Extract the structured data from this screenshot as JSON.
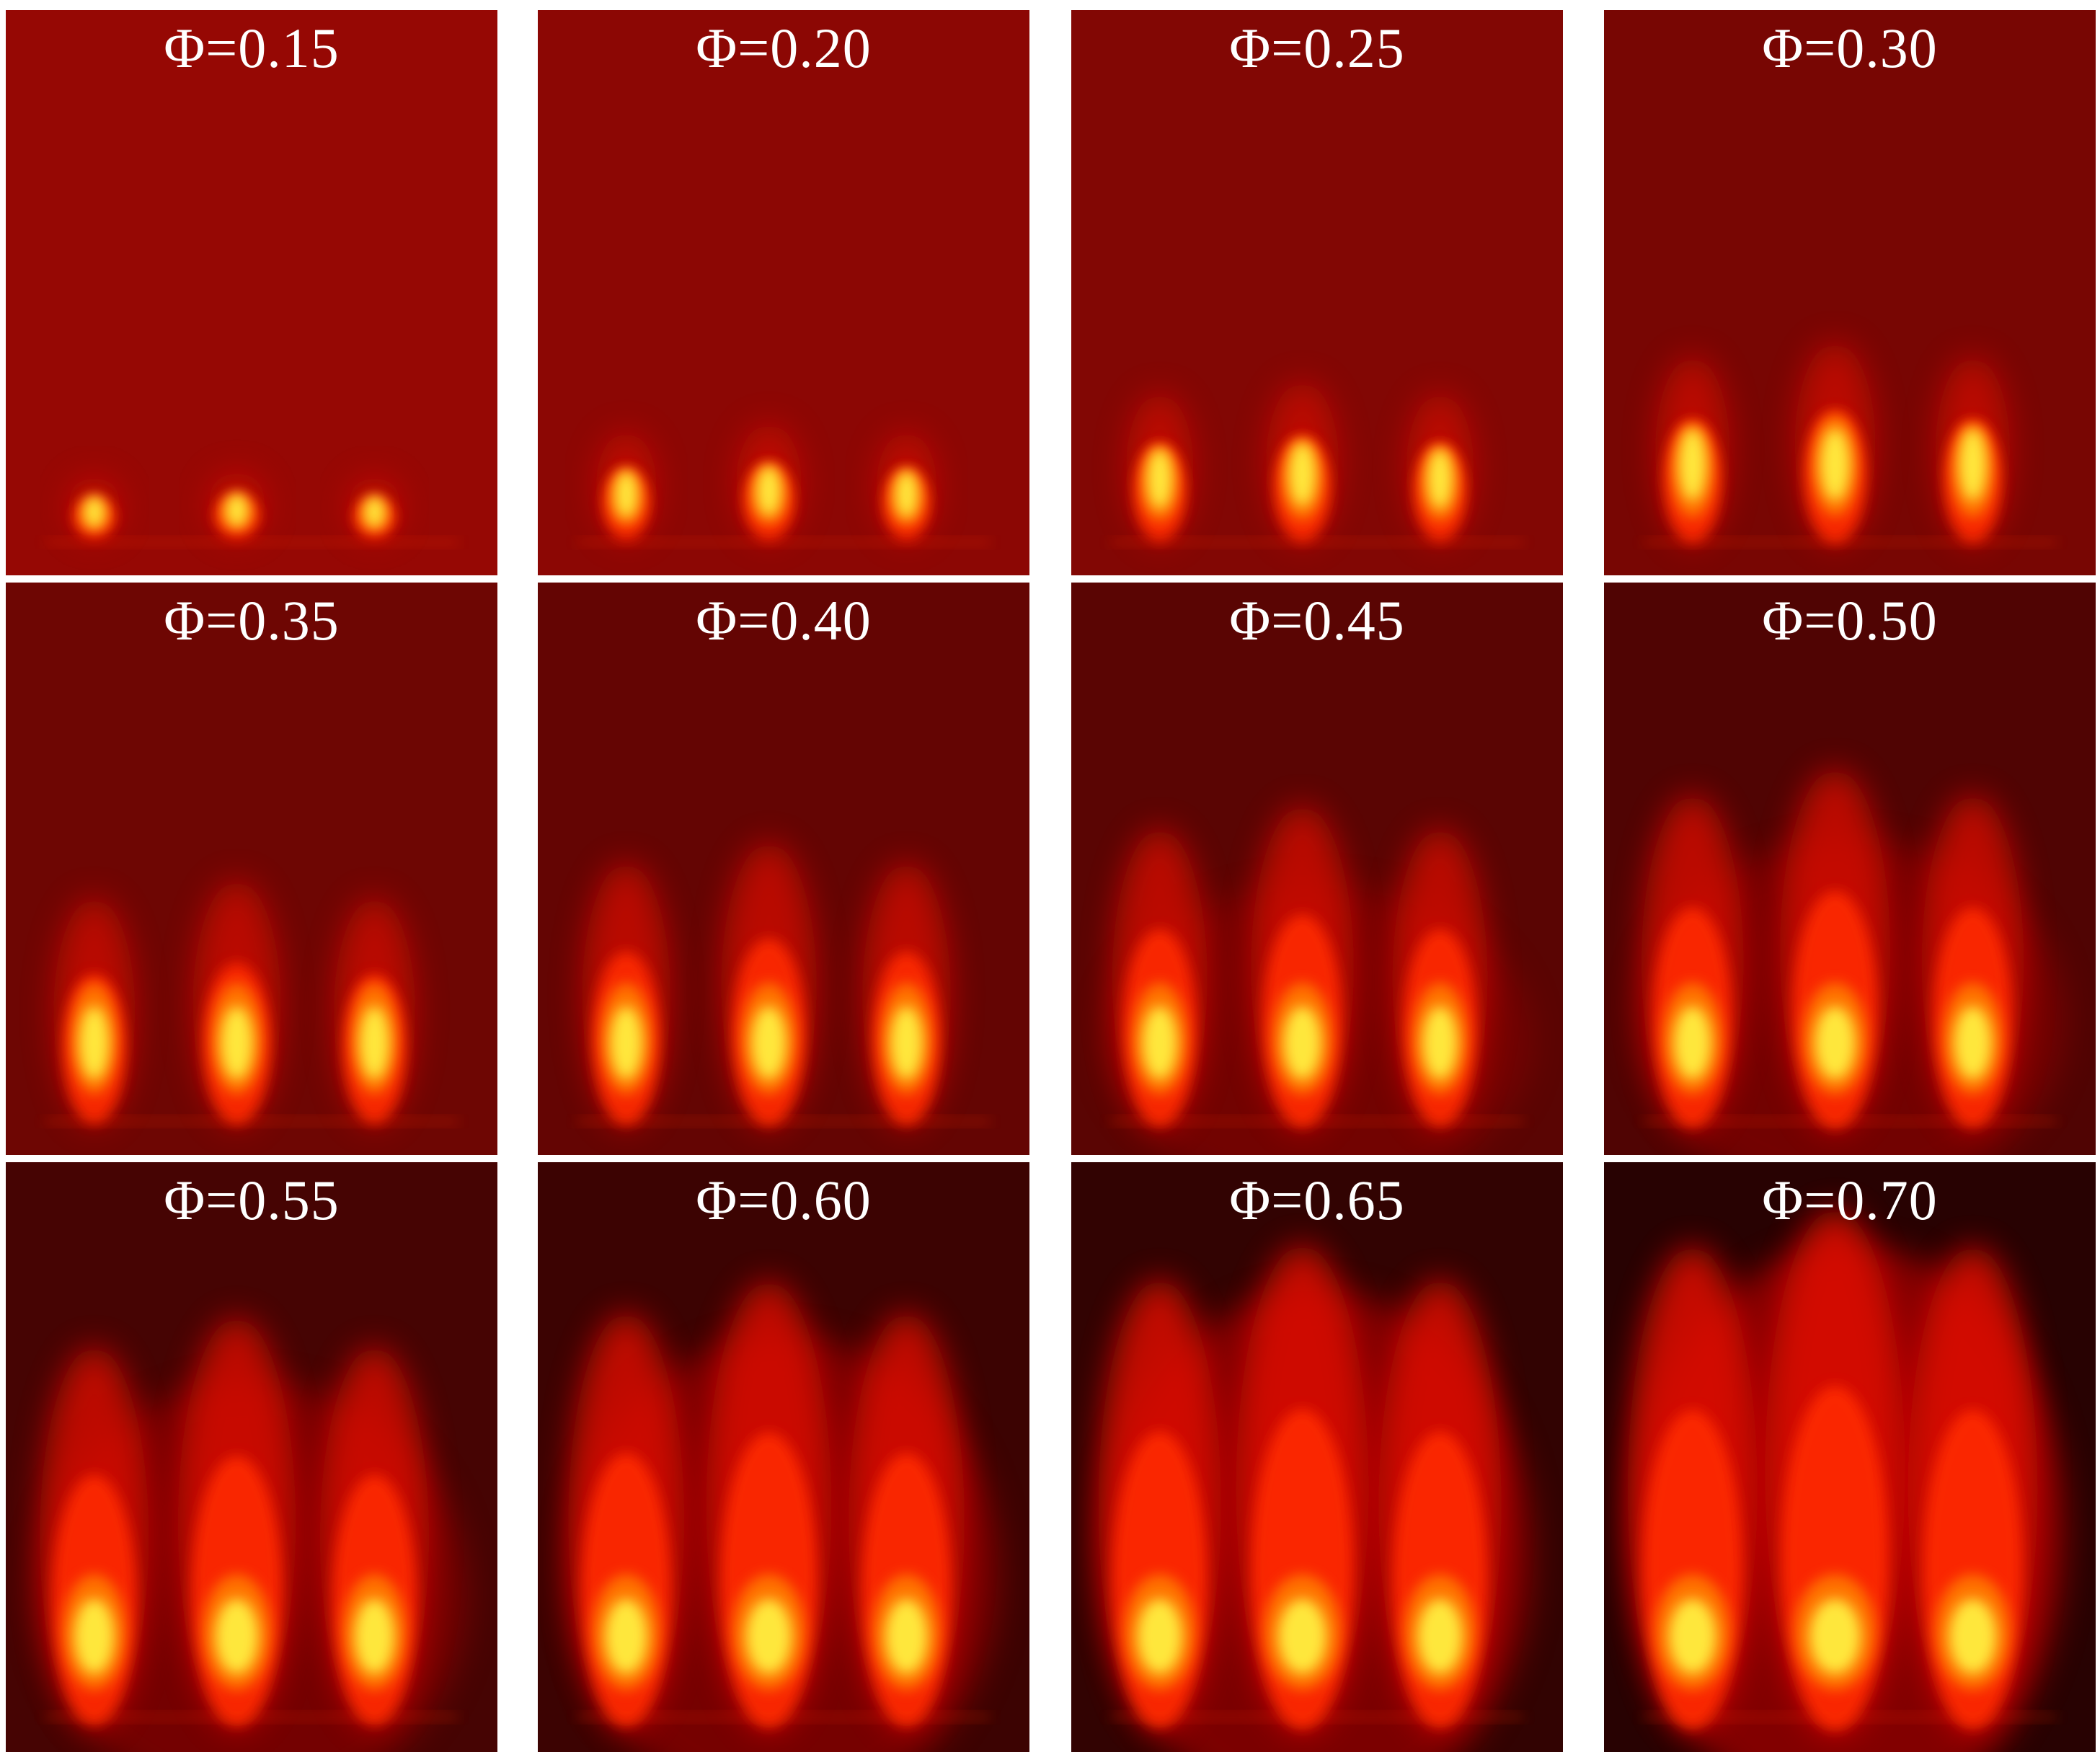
{
  "panels": [
    {
      "label": "Φ=0.15",
      "phi": 0.15
    },
    {
      "label": "Φ=0.20",
      "phi": 0.2
    },
    {
      "label": "Φ=0.25",
      "phi": 0.25
    },
    {
      "label": "Φ=0.30",
      "phi": 0.3
    },
    {
      "label": "Φ=0.35",
      "phi": 0.35
    },
    {
      "label": "Φ=0.40",
      "phi": 0.4
    },
    {
      "label": "Φ=0.45",
      "phi": 0.45
    },
    {
      "label": "Φ=0.50",
      "phi": 0.5
    },
    {
      "label": "Φ=0.55",
      "phi": 0.55
    },
    {
      "label": "Φ=0.60",
      "phi": 0.6
    },
    {
      "label": "Φ=0.65",
      "phi": 0.65
    },
    {
      "label": "Φ=0.70",
      "phi": 0.7
    }
  ],
  "colors": {
    "background": "#ffffff",
    "label": "#ffffff",
    "flame_core": "#ffff40",
    "flame_mid": "#ff2000",
    "flame_outer": "#c00000"
  }
}
